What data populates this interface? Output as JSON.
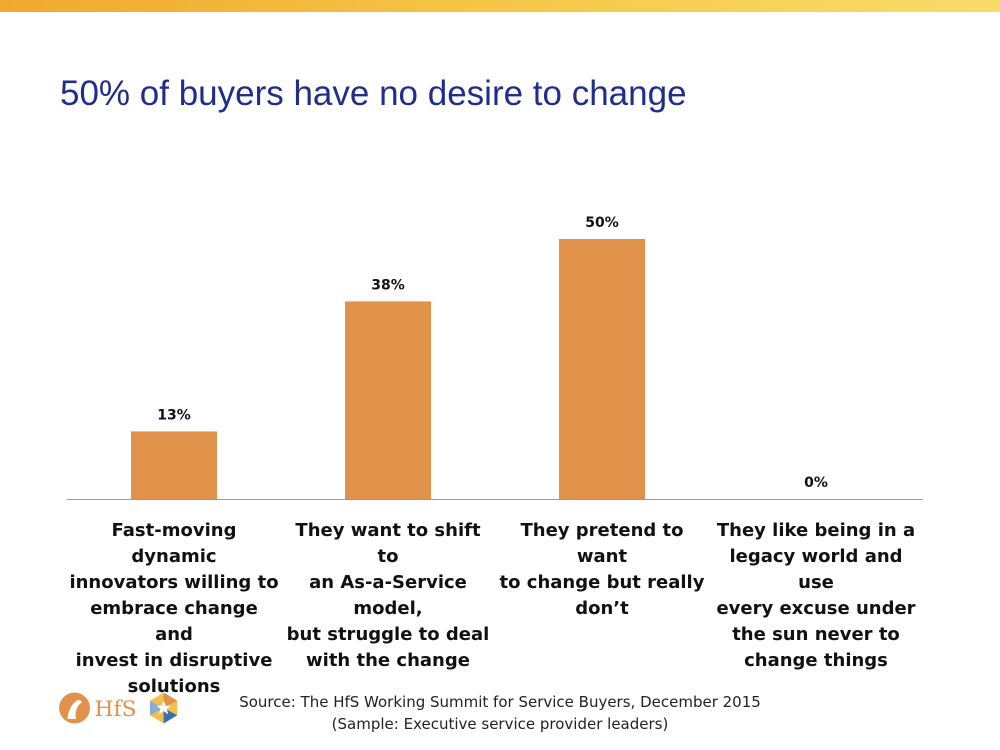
{
  "slide": {
    "title": "50% of buyers have no desire to change",
    "source_line1": "Source:  The HfS Working Summit for Service Buyers, December 2015",
    "source_line2": "(Sample:  Executive service provider leaders)",
    "logo_text": "HfS"
  },
  "colors": {
    "bar": "#e0924a",
    "title": "#1f2d8c",
    "axis": "#999999"
  },
  "chart_data": {
    "type": "bar",
    "title": "",
    "xlabel": "",
    "ylabel": "",
    "ylim": [
      0,
      60
    ],
    "categories": [
      "Fast-moving dynamic innovators willing to embrace change and invest in disruptive solutions",
      "They want to shift to an As-a-Service model, but struggle to deal with the change",
      "They pretend to want to change but really don’t",
      "They like being in a legacy world and use every excuse under the sun never to change things"
    ],
    "category_lines": [
      [
        "Fast-moving dynamic",
        "innovators willing to",
        "embrace change and",
        "invest in disruptive",
        "solutions"
      ],
      [
        "They want to shift to",
        "an As-a-Service model,",
        "but struggle to deal",
        "with the change"
      ],
      [
        "They pretend to want",
        "to change but really",
        "don’t"
      ],
      [
        "They like being in a",
        "legacy world and use",
        "every excuse under",
        "the sun never to",
        "change things"
      ]
    ],
    "values": [
      13,
      38,
      50,
      0
    ],
    "data_labels": [
      "13%",
      "38%",
      "50%",
      "0%"
    ],
    "grid": false,
    "legend": "none"
  }
}
